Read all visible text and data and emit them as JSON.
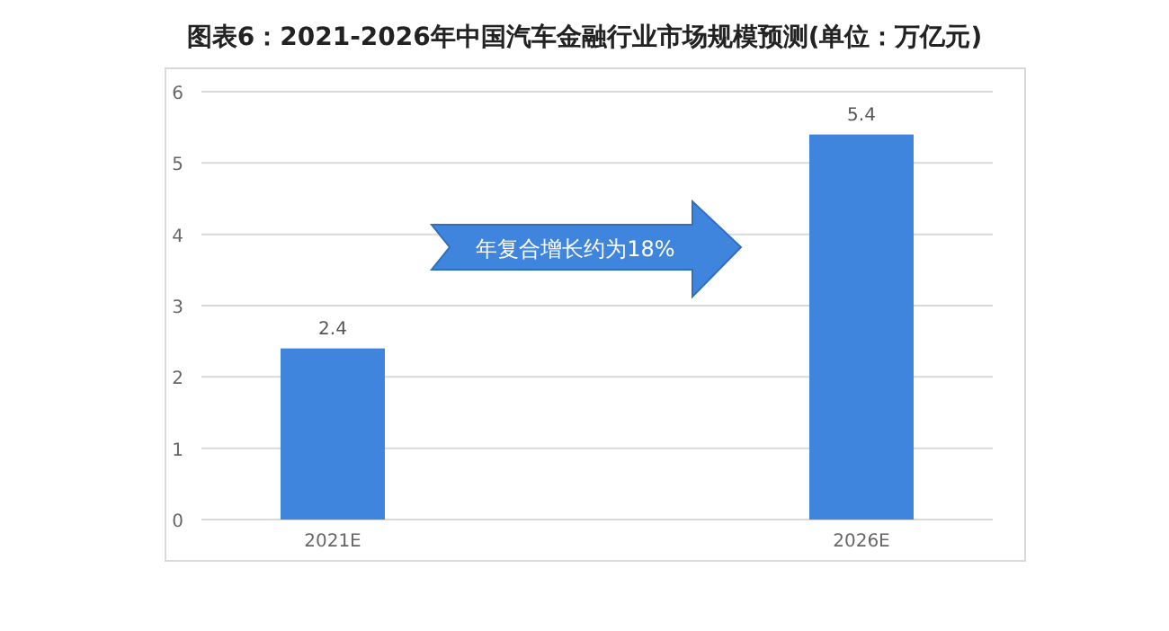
{
  "chart_data": {
    "type": "bar",
    "title": "图表6：2021-2026年中国汽车金融行业市场规模预测(单位：万亿元)",
    "categories": [
      "2021E",
      "2026E"
    ],
    "values": [
      2.4,
      5.4
    ],
    "color": "#3f85de",
    "ylim": [
      0,
      6
    ],
    "yticks": [
      0,
      1,
      2,
      3,
      4,
      5,
      6
    ],
    "grid": "y",
    "data_labels": true,
    "annotations": [
      "年复合增长约为18%"
    ]
  }
}
